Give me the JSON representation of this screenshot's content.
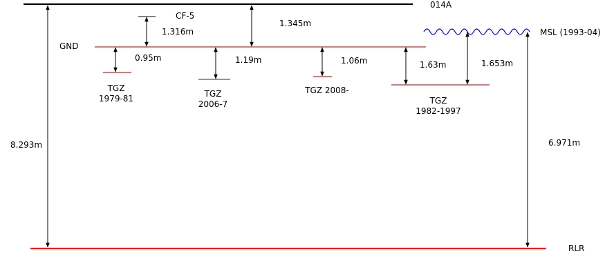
{
  "labels": {
    "benchmark": "014A",
    "cf5": "CF-5",
    "gnd": "GND",
    "msl": "MSL (1993-04)",
    "rlr": "RLR",
    "tgz_1979_line1": "TGZ",
    "tgz_1979_line2": "1979-81",
    "tgz_2006_line1": "TGZ",
    "tgz_2006_line2": "2006-7",
    "tgz_2008": "TGZ 2008-",
    "tgz_1982_line1": "TGZ",
    "tgz_1982_line2": "1982-1997"
  },
  "measurements": {
    "benchmark_to_rlr": "8.293m",
    "cf5_to_gnd": "1.316m",
    "benchmark_to_gnd": "1.345m",
    "gnd_to_tgz_1979": "0.95m",
    "gnd_to_tgz_2006": "1.19m",
    "gnd_to_tgz_2008": "1.06m",
    "gnd_to_tgz_1982": "1.63m",
    "msl_to_tgz_1982": "1.653m",
    "msl_to_rlr": "6.971m"
  },
  "colors": {
    "benchmark_line": "#000000",
    "gnd_line": "#8b0000",
    "tgz_line": "#8b0000",
    "rlr_line": "#ff0000",
    "msl_wave": "#0000cc",
    "arrow": "#000000"
  }
}
